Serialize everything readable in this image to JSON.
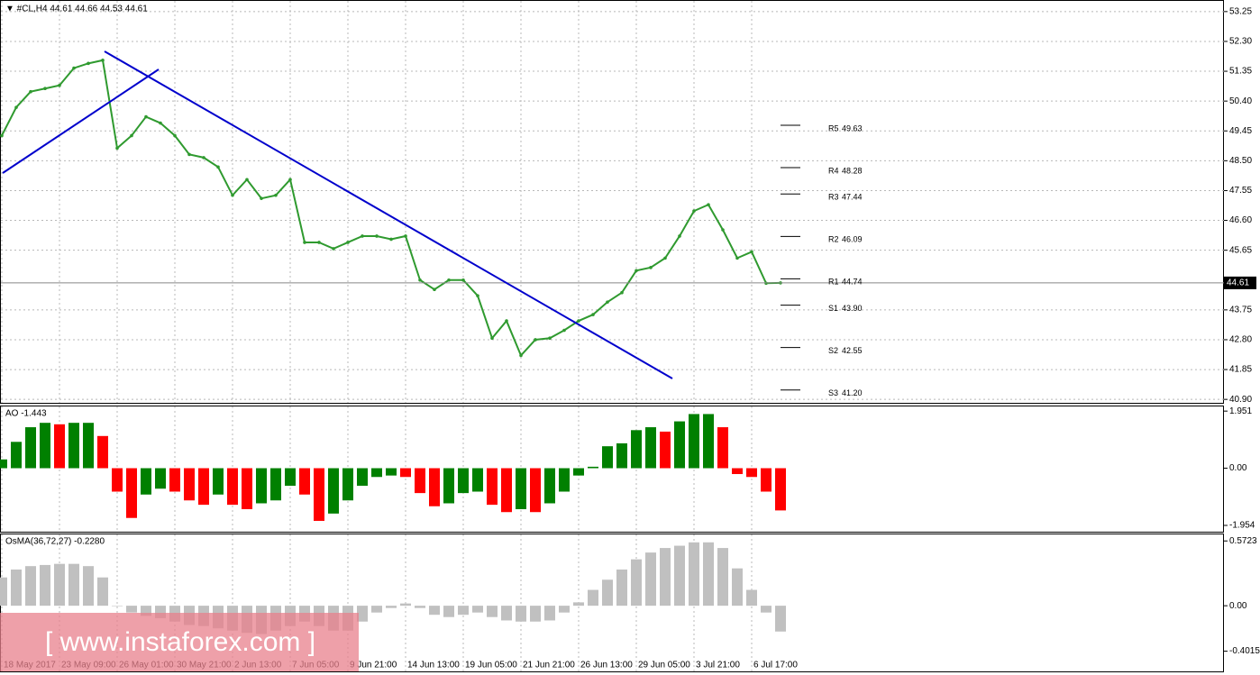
{
  "header": "▼ #CL,H4  44.61 44.66 44.53 44.61",
  "watermark": "[ www.instaforex.com ]",
  "chart_data": [
    {
      "type": "line",
      "color": "#2f9a2f",
      "grid": true,
      "categories": [
        "18 May 2017",
        null,
        null,
        null,
        "23 May 09:00",
        null,
        null,
        null,
        "26 May 01:00",
        null,
        null,
        null,
        "30 May 21:00",
        null,
        null,
        null,
        "2 Jun 13:00",
        null,
        null,
        null,
        "7 Jun 05:00",
        null,
        null,
        null,
        "9 Jun 21:00",
        null,
        null,
        null,
        "14 Jun 13:00",
        null,
        null,
        null,
        "19 Jun 05:00",
        null,
        null,
        null,
        "21 Jun 21:00",
        null,
        null,
        null,
        "26 Jun 13:00",
        null,
        null,
        null,
        "29 Jun 05:00",
        null,
        null,
        null,
        "3 Jul 21:00",
        null,
        null,
        null,
        "6 Jul 17:00",
        null,
        null
      ],
      "values": [
        49.3,
        50.2,
        50.7,
        50.8,
        50.9,
        51.45,
        51.6,
        51.7,
        48.9,
        49.3,
        49.9,
        49.7,
        49.3,
        48.7,
        48.6,
        48.3,
        47.4,
        47.9,
        47.3,
        47.4,
        47.9,
        45.9,
        45.9,
        45.7,
        45.9,
        46.1,
        46.1,
        46.0,
        46.1,
        44.7,
        44.4,
        44.7,
        44.7,
        44.2,
        42.85,
        43.4,
        42.3,
        42.8,
        42.85,
        43.1,
        43.4,
        43.6,
        44.0,
        44.3,
        45.0,
        45.1,
        45.4,
        46.1,
        46.9,
        47.1,
        46.3,
        45.4,
        45.6,
        44.6,
        44.61
      ],
      "last": 44.61,
      "ylim": [
        40.79,
        53.59
      ],
      "yticks": [
        53.25,
        {
          "value": 52.3,
          "label": "52.30"
        },
        51.35,
        {
          "value": 50.4,
          "label": "50.40"
        },
        49.45,
        {
          "value": 48.5,
          "label": "48.50"
        },
        47.55,
        {
          "value": 46.6,
          "label": "46.60"
        },
        45.65,
        43.75,
        {
          "value": 42.8,
          "label": "42.80"
        },
        41.85,
        {
          "value": 40.9,
          "label": "40.90"
        }
      ],
      "levels": {
        "names": [
          "R5",
          "R4",
          "R3",
          "R2",
          "R1",
          "S1",
          "S2",
          "S3"
        ],
        "values": [
          49.63,
          48.28,
          47.44,
          46.09,
          44.74,
          43.9,
          42.55,
          41.2
        ],
        "value_labels": [
          "49.63",
          "48.28",
          "47.44",
          "46.09",
          "44.74",
          "43.90",
          "42.55",
          "41.20"
        ]
      }
    },
    {
      "type": "bar",
      "title": "AO -1.443",
      "up_color": "#008000",
      "down_color": "#ff0000",
      "values": [
        0.3,
        0.9,
        1.4,
        1.55,
        1.5,
        1.55,
        1.55,
        1.1,
        -0.8,
        -1.7,
        -0.9,
        -0.7,
        -0.8,
        -1.1,
        -1.25,
        -0.9,
        -1.25,
        -1.4,
        -1.2,
        -1.1,
        -0.6,
        -0.9,
        -1.8,
        -1.55,
        -1.1,
        -0.6,
        -0.3,
        -0.25,
        -0.3,
        -0.85,
        -1.3,
        -1.2,
        -0.85,
        -0.8,
        -1.25,
        -1.5,
        -1.4,
        -1.5,
        -1.2,
        -0.8,
        -0.25,
        0.05,
        0.75,
        0.85,
        1.3,
        1.4,
        1.25,
        1.6,
        1.85,
        1.85,
        1.4,
        -0.2,
        -0.3,
        -0.8,
        -1.443
      ],
      "ylim": [
        -2.17,
        2.11
      ],
      "yticks": [
        1.951,
        {
          "value": 0,
          "label": "0.00"
        },
        -1.954
      ]
    },
    {
      "type": "bar",
      "title": "OsMA(36,72,27) -0.2280",
      "color": "#c0c0c0",
      "values": [
        0.25,
        0.32,
        0.35,
        0.36,
        0.37,
        0.37,
        0.35,
        0.25,
        0,
        -0.06,
        -0.09,
        -0.11,
        -0.14,
        -0.17,
        -0.18,
        -0.2,
        -0.22,
        -0.24,
        -0.25,
        -0.22,
        -0.18,
        -0.14,
        -0.18,
        -0.22,
        -0.22,
        -0.14,
        -0.06,
        -0.02,
        0.02,
        -0.02,
        -0.08,
        -0.1,
        -0.08,
        -0.06,
        -0.1,
        -0.13,
        -0.14,
        -0.14,
        -0.13,
        -0.06,
        0.03,
        0.14,
        0.23,
        0.32,
        0.41,
        0.47,
        0.51,
        0.53,
        0.56,
        0.56,
        0.51,
        0.33,
        0.14,
        -0.06,
        -0.228
      ],
      "ylim": [
        -0.58,
        0.63
      ],
      "yticks": [
        0.5723,
        {
          "value": 0,
          "label": "0.00"
        },
        -0.4015
      ]
    }
  ]
}
